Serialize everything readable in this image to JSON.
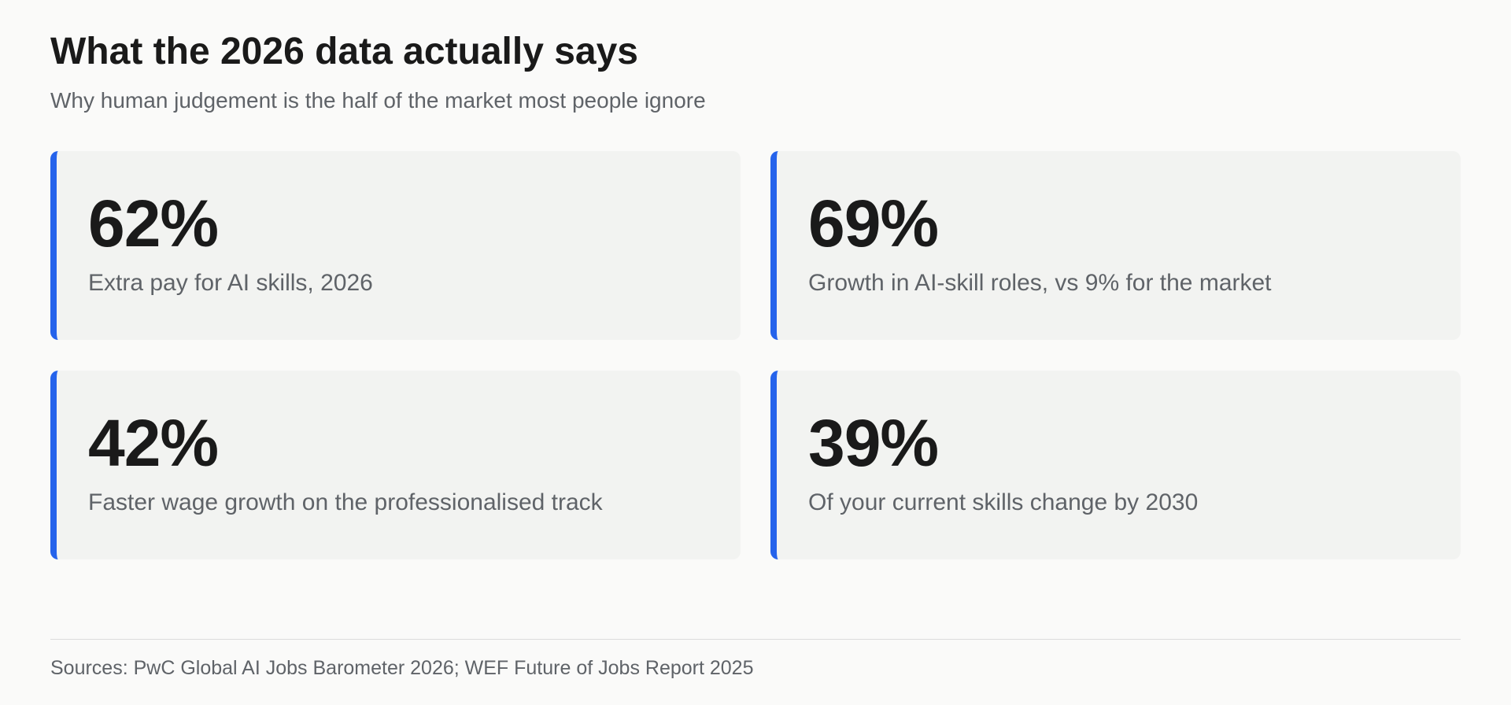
{
  "header": {
    "title": "What the 2026 data actually says",
    "subtitle": "Why human judgement is the half of the market most people ignore"
  },
  "stats": [
    {
      "value": "62%",
      "label": "Extra pay for AI skills, 2026"
    },
    {
      "value": "69%",
      "label": "Growth in AI-skill roles, vs 9% for the market"
    },
    {
      "value": "42%",
      "label": "Faster wage growth on the professionalised track"
    },
    {
      "value": "39%",
      "label": "Of your current skills change by 2030"
    }
  ],
  "footer": {
    "sources": "Sources: PwC Global AI Jobs Barometer 2026; WEF Future of Jobs Report 2025"
  },
  "colors": {
    "accent": "#2563eb",
    "card_background": "#f2f3f1",
    "page_background": "#fafaf9",
    "muted_text": "#5f6368"
  }
}
